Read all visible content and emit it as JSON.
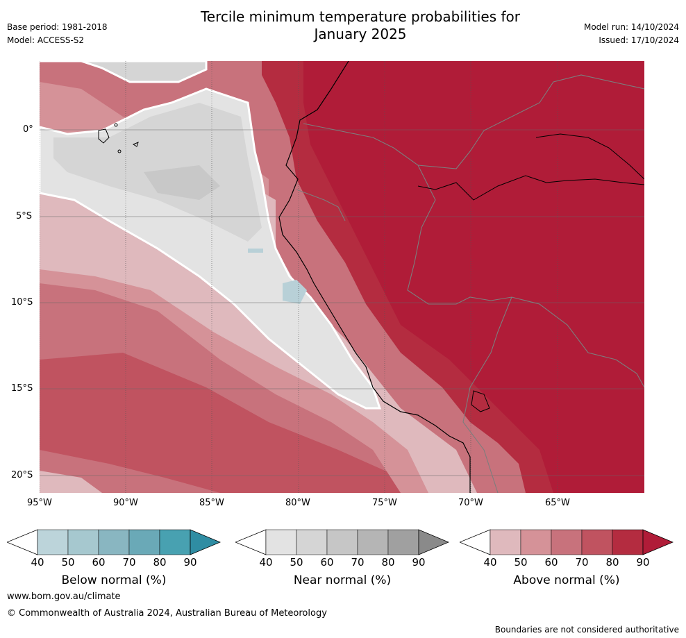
{
  "header": {
    "title_line1": "Tercile minimum temperature probabilities for",
    "title_line2": "January 2025",
    "base_period": "Base period: 1981-2018",
    "model": "Model: ACCESS-S2",
    "model_run": "Model run: 14/10/2024",
    "issued": "Issued: 17/10/2024"
  },
  "map": {
    "lat_ticks": [
      "0°",
      "5°S",
      "10°S",
      "15°S",
      "20°S"
    ],
    "lon_ticks": [
      "95°W",
      "90°W",
      "85°W",
      "80°W",
      "75°W",
      "70°W",
      "65°W"
    ],
    "colors": {
      "above": [
        "#dfb9bd",
        "#d59298",
        "#c8727c",
        "#c05360",
        "#b42c40",
        "#b01c38"
      ],
      "near": [
        "#e3e3e3",
        "#d5d5d5",
        "#c8c8c8"
      ],
      "below": [
        "#b8d0d7"
      ]
    }
  },
  "colorbars": [
    {
      "label": "Below normal (%)",
      "ticks": [
        "40",
        "50",
        "60",
        "70",
        "80",
        "90"
      ],
      "colors": [
        "#ffffff",
        "#bcd4da",
        "#a6c8cf",
        "#89b6c1",
        "#6aa9b7",
        "#48a1b1",
        "#2f8da3"
      ]
    },
    {
      "label": "Near normal (%)",
      "ticks": [
        "40",
        "50",
        "60",
        "70",
        "80",
        "90"
      ],
      "colors": [
        "#ffffff",
        "#e3e3e3",
        "#d5d5d5",
        "#c6c6c6",
        "#b5b5b5",
        "#a0a0a0",
        "#8a8a8a"
      ]
    },
    {
      "label": "Above normal (%)",
      "ticks": [
        "40",
        "50",
        "60",
        "70",
        "80",
        "90"
      ],
      "colors": [
        "#ffffff",
        "#dfb9bd",
        "#d59298",
        "#c8727c",
        "#c05360",
        "#b42c40",
        "#b01c38"
      ]
    }
  ],
  "footer": {
    "url": "www.bom.gov.au/climate",
    "copyright": "© Commonwealth of Australia 2024, Australian Bureau of Meteorology",
    "disclaimer": "Boundaries are not considered authoritative"
  }
}
